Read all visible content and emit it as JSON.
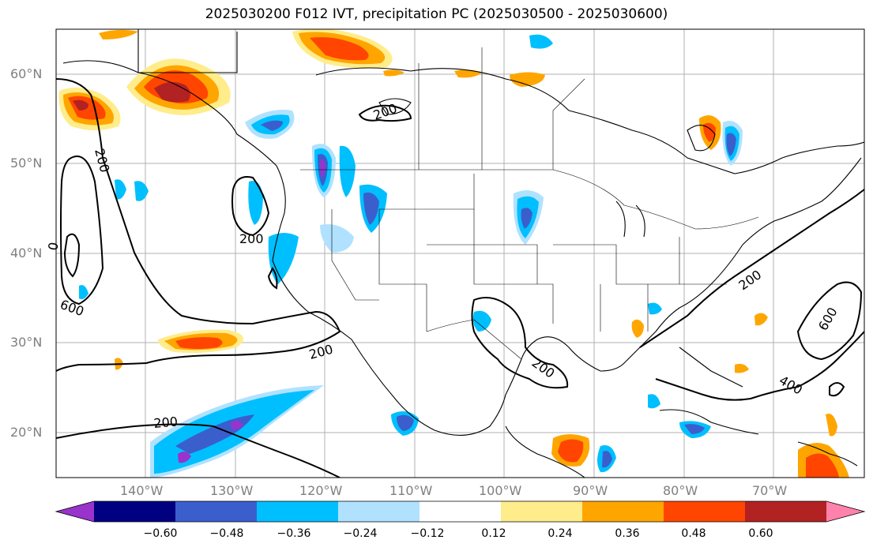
{
  "title": "2025030200 F012 IVT, precipitation PC (2025030500 - 2025030600)",
  "lat_labels": [
    "60°N",
    "50°N",
    "40°N",
    "30°N",
    "20°N"
  ],
  "lon_labels": [
    "140°W",
    "130°W",
    "120°W",
    "110°W",
    "100°W",
    "90°W",
    "80°W",
    "70°W"
  ],
  "contour_labels": [
    "200",
    "200",
    "200",
    "200",
    "200",
    "200",
    "200",
    "400",
    "600",
    "600",
    "0"
  ],
  "colorbar": {
    "ticks": [
      "−0.60",
      "−0.48",
      "−0.36",
      "−0.24",
      "−0.12",
      "0.12",
      "0.24",
      "0.36",
      "0.48",
      "0.60"
    ],
    "colors": [
      "#9933cc",
      "#000080",
      "#3a5fcd",
      "#00bfff",
      "#b0e2ff",
      "#ffffff",
      "#ffec8b",
      "#ffa500",
      "#ff4500",
      "#b22222",
      "#ff82ab"
    ]
  },
  "chart_data": {
    "type": "contour map",
    "title": "2025030200 F012 IVT, precipitation PC (2025030500 - 2025030600)",
    "ivt_contour_levels": [
      200,
      400,
      600
    ],
    "colorbar_range": [
      -0.6,
      0.6
    ],
    "colorbar_step": 0.12,
    "lat_range": [
      "15°N",
      "65°N"
    ],
    "lon_range": [
      "150°W",
      "60°W"
    ]
  }
}
